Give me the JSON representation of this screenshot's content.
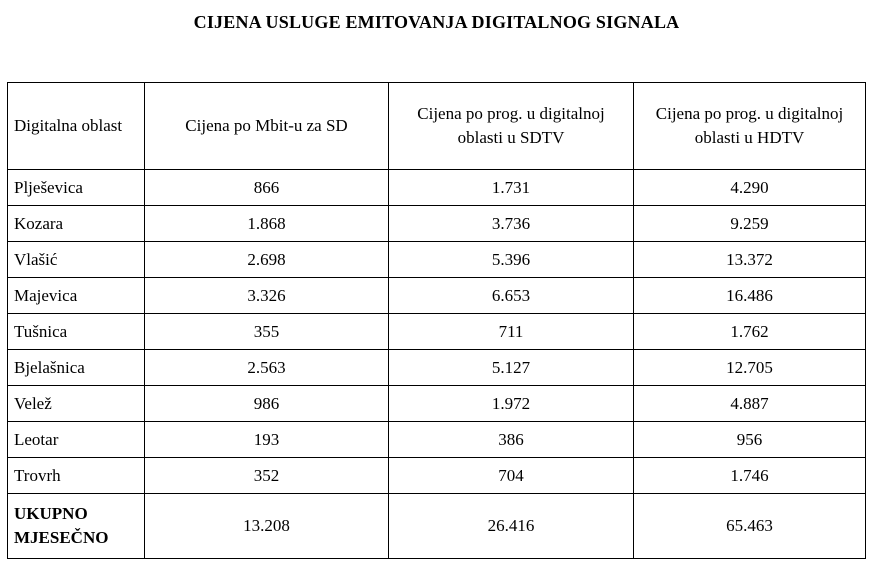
{
  "document": {
    "title": "CIJENA USLUGE EMITOVANJA DIGITALNOG SIGNALA"
  },
  "table": {
    "headers": [
      "Digitalna oblast",
      "Cijena po Mbit-u za SD",
      "Cijena po prog. u digitalnoj oblasti u SDTV",
      "Cijena po prog. u digitalnoj oblasti u HDTV"
    ],
    "rows": [
      [
        "Plješevica",
        "866",
        "1.731",
        "4.290"
      ],
      [
        "Kozara",
        "1.868",
        "3.736",
        "9.259"
      ],
      [
        "Vlašić",
        "2.698",
        "5.396",
        "13.372"
      ],
      [
        "Majevica",
        "3.326",
        "6.653",
        "16.486"
      ],
      [
        "Tušnica",
        "355",
        "711",
        "1.762"
      ],
      [
        "Bjelašnica",
        "2.563",
        "5.127",
        "12.705"
      ],
      [
        "Velež",
        "986",
        "1.972",
        "4.887"
      ],
      [
        "Leotar",
        "193",
        "386",
        "956"
      ],
      [
        "Trovrh",
        "352",
        "704",
        "1.746"
      ]
    ],
    "total": [
      "UKUPNO MJESEČNO",
      "13.208",
      "26.416",
      "65.463"
    ]
  }
}
